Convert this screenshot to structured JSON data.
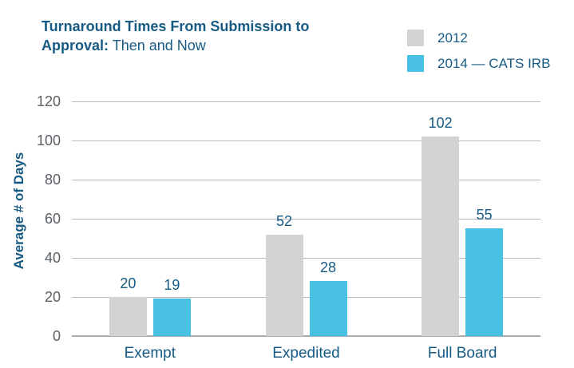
{
  "title": {
    "bold": "Turnaround Times From Submission to Approval:",
    "regular": "Then and Now"
  },
  "legend": {
    "items": [
      {
        "label": "2012",
        "color": "#D1D3D4"
      },
      {
        "label": "2014 — CATS IRB",
        "color": "#47C0E2"
      }
    ]
  },
  "chart_data": {
    "type": "bar",
    "title": "Turnaround Times From Submission to Approval: Then and Now",
    "categories": [
      "Exempt",
      "Expedited",
      "Full Board"
    ],
    "series": [
      {
        "name": "2012",
        "color": "#D1D3D4",
        "values": [
          20,
          52,
          102
        ]
      },
      {
        "name": "2014 — CATS IRB",
        "color": "#47C0E2",
        "values": [
          19,
          28,
          55
        ]
      }
    ],
    "xlabel": "",
    "ylabel": "Average # of Days",
    "ylim": [
      0,
      120
    ],
    "ytick_step": 20,
    "grid": true,
    "legend_position": "top-right",
    "bar_value_labels": true,
    "colors": {
      "title_text": "#175B84",
      "value_label_text": "#175B84",
      "category_text": "#175B84",
      "tick_text": "#5A6066",
      "gridline": "#B3B9BF",
      "axis_line": "#A9ACAE",
      "background": "#FFFFFF"
    }
  }
}
